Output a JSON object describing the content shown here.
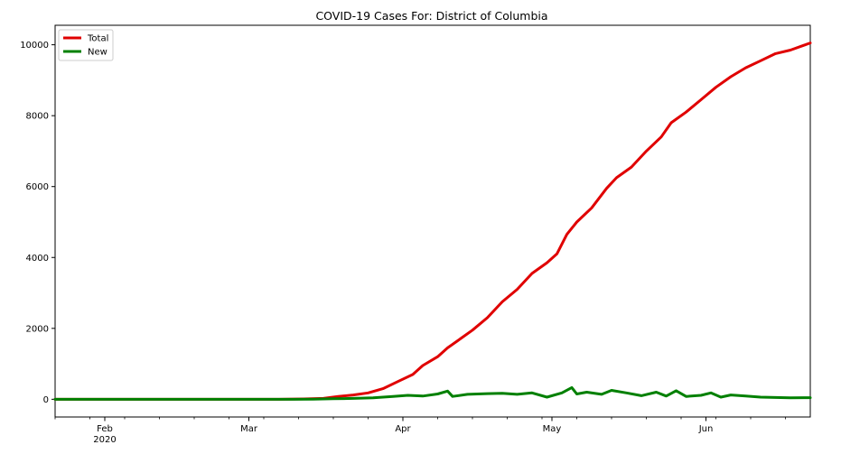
{
  "chart_data": {
    "type": "line",
    "title": "COVID-19 Cases For: District of Columbia",
    "xlabel": "",
    "ylabel": "",
    "x_range": [
      "2020-01-22",
      "2020-06-22"
    ],
    "ylim": [
      -500,
      10550
    ],
    "y_ticks": [
      0,
      2000,
      4000,
      6000,
      8000,
      10000
    ],
    "x_ticks": [
      {
        "date": "2020-02-01",
        "label": "Feb",
        "sublabel": "2020"
      },
      {
        "date": "2020-03-01",
        "label": "Mar",
        "sublabel": ""
      },
      {
        "date": "2020-04-01",
        "label": "Apr",
        "sublabel": ""
      },
      {
        "date": "2020-05-01",
        "label": "May",
        "sublabel": ""
      },
      {
        "date": "2020-06-01",
        "label": "Jun",
        "sublabel": ""
      }
    ],
    "grid": false,
    "legend": "top-left",
    "series": [
      {
        "name": "Total",
        "color": "#e00000",
        "points": [
          [
            "2020-01-22",
            0
          ],
          [
            "2020-03-07",
            0
          ],
          [
            "2020-03-12",
            10
          ],
          [
            "2020-03-16",
            25
          ],
          [
            "2020-03-19",
            80
          ],
          [
            "2020-03-22",
            120
          ],
          [
            "2020-03-25",
            180
          ],
          [
            "2020-03-28",
            300
          ],
          [
            "2020-03-31",
            500
          ],
          [
            "2020-04-03",
            700
          ],
          [
            "2020-04-05",
            950
          ],
          [
            "2020-04-08",
            1200
          ],
          [
            "2020-04-10",
            1450
          ],
          [
            "2020-04-12",
            1650
          ],
          [
            "2020-04-15",
            1950
          ],
          [
            "2020-04-18",
            2300
          ],
          [
            "2020-04-21",
            2750
          ],
          [
            "2020-04-24",
            3100
          ],
          [
            "2020-04-27",
            3550
          ],
          [
            "2020-04-30",
            3850
          ],
          [
            "2020-05-02",
            4100
          ],
          [
            "2020-05-04",
            4650
          ],
          [
            "2020-05-06",
            5000
          ],
          [
            "2020-05-09",
            5400
          ],
          [
            "2020-05-12",
            5950
          ],
          [
            "2020-05-14",
            6250
          ],
          [
            "2020-05-17",
            6550
          ],
          [
            "2020-05-20",
            7000
          ],
          [
            "2020-05-23",
            7400
          ],
          [
            "2020-05-25",
            7800
          ],
          [
            "2020-05-28",
            8100
          ],
          [
            "2020-05-31",
            8450
          ],
          [
            "2020-06-03",
            8800
          ],
          [
            "2020-06-06",
            9100
          ],
          [
            "2020-06-09",
            9350
          ],
          [
            "2020-06-12",
            9550
          ],
          [
            "2020-06-15",
            9750
          ],
          [
            "2020-06-18",
            9850
          ],
          [
            "2020-06-22",
            10050
          ]
        ]
      },
      {
        "name": "New",
        "color": "#008000",
        "points": [
          [
            "2020-01-22",
            0
          ],
          [
            "2020-03-10",
            0
          ],
          [
            "2020-03-14",
            5
          ],
          [
            "2020-03-18",
            15
          ],
          [
            "2020-03-22",
            25
          ],
          [
            "2020-03-26",
            40
          ],
          [
            "2020-03-30",
            80
          ],
          [
            "2020-04-02",
            110
          ],
          [
            "2020-04-05",
            90
          ],
          [
            "2020-04-08",
            150
          ],
          [
            "2020-04-10",
            230
          ],
          [
            "2020-04-11",
            80
          ],
          [
            "2020-04-14",
            140
          ],
          [
            "2020-04-18",
            160
          ],
          [
            "2020-04-21",
            170
          ],
          [
            "2020-04-24",
            140
          ],
          [
            "2020-04-27",
            180
          ],
          [
            "2020-04-30",
            60
          ],
          [
            "2020-05-03",
            180
          ],
          [
            "2020-05-05",
            330
          ],
          [
            "2020-05-06",
            150
          ],
          [
            "2020-05-08",
            200
          ],
          [
            "2020-05-11",
            140
          ],
          [
            "2020-05-13",
            250
          ],
          [
            "2020-05-16",
            180
          ],
          [
            "2020-05-19",
            100
          ],
          [
            "2020-05-22",
            200
          ],
          [
            "2020-05-24",
            90
          ],
          [
            "2020-05-26",
            240
          ],
          [
            "2020-05-28",
            80
          ],
          [
            "2020-05-31",
            110
          ],
          [
            "2020-06-02",
            180
          ],
          [
            "2020-06-04",
            60
          ],
          [
            "2020-06-06",
            120
          ],
          [
            "2020-06-09",
            90
          ],
          [
            "2020-06-12",
            60
          ],
          [
            "2020-06-15",
            50
          ],
          [
            "2020-06-18",
            40
          ],
          [
            "2020-06-22",
            45
          ]
        ]
      }
    ]
  }
}
